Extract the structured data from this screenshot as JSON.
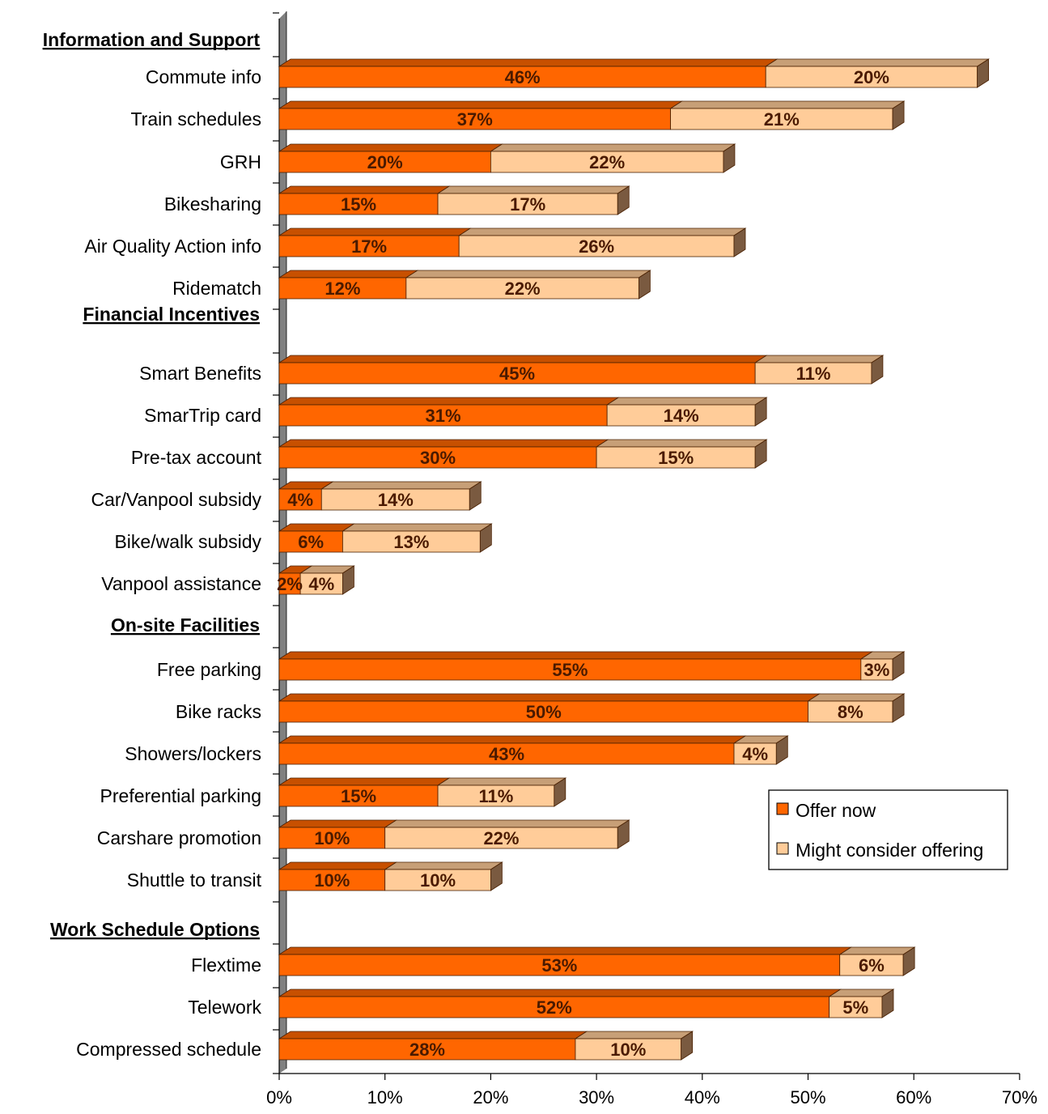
{
  "chart_data": {
    "type": "bar",
    "orientation": "horizontal",
    "stacked": true,
    "x_ticks": [
      "0%",
      "10%",
      "20%",
      "30%",
      "40%",
      "50%",
      "60%",
      "70%"
    ],
    "xlim": [
      0,
      70
    ],
    "legend_position": "right",
    "series": [
      {
        "name": "Offer now",
        "color": "#ff6600"
      },
      {
        "name": "Might consider offering",
        "color": "#ffcc99"
      }
    ],
    "groups": [
      {
        "title": "Information and Support",
        "items": [
          {
            "label": "Commute info",
            "values": [
              46,
              20
            ],
            "labels": [
              "46%",
              "20%"
            ]
          },
          {
            "label": "Train schedules",
            "values": [
              37,
              21
            ],
            "labels": [
              "37%",
              "21%"
            ]
          },
          {
            "label": "GRH",
            "values": [
              20,
              22
            ],
            "labels": [
              "20%",
              "22%"
            ]
          },
          {
            "label": "Bikesharing",
            "values": [
              15,
              17
            ],
            "labels": [
              "15%",
              "17%"
            ]
          },
          {
            "label": "Air Quality Action info",
            "values": [
              17,
              26
            ],
            "labels": [
              "17%",
              "26%"
            ]
          },
          {
            "label": "Ridematch",
            "values": [
              12,
              22
            ],
            "labels": [
              "12%",
              "22%"
            ]
          }
        ]
      },
      {
        "title": "Financial Incentives",
        "items": [
          {
            "label": "Smart Benefits",
            "values": [
              45,
              11
            ],
            "labels": [
              "45%",
              "11%"
            ]
          },
          {
            "label": "SmarTrip card",
            "values": [
              31,
              14
            ],
            "labels": [
              "31%",
              "14%"
            ]
          },
          {
            "label": "Pre-tax account",
            "values": [
              30,
              15
            ],
            "labels": [
              "30%",
              "15%"
            ]
          },
          {
            "label": "Car/Vanpool subsidy",
            "values": [
              4,
              14
            ],
            "labels": [
              "4%",
              "14%"
            ]
          },
          {
            "label": "Bike/walk subsidy",
            "values": [
              6,
              13
            ],
            "labels": [
              "6%",
              "13%"
            ]
          },
          {
            "label": "Vanpool assistance",
            "values": [
              2,
              4
            ],
            "labels": [
              "2%",
              "4%"
            ]
          }
        ]
      },
      {
        "title": "On-site Facilities",
        "items": [
          {
            "label": "Free parking",
            "values": [
              55,
              3
            ],
            "labels": [
              "55%",
              "3%"
            ]
          },
          {
            "label": "Bike racks",
            "values": [
              50,
              8
            ],
            "labels": [
              "50%",
              "8%"
            ]
          },
          {
            "label": "Showers/lockers",
            "values": [
              43,
              4
            ],
            "labels": [
              "43%",
              "4%"
            ]
          },
          {
            "label": "Preferential parking",
            "values": [
              15,
              11
            ],
            "labels": [
              "15%",
              "11%"
            ]
          },
          {
            "label": "Carshare promotion",
            "values": [
              10,
              22
            ],
            "labels": [
              "10%",
              "22%"
            ]
          },
          {
            "label": "Shuttle to transit",
            "values": [
              10,
              10
            ],
            "labels": [
              "10%",
              "10%"
            ]
          }
        ]
      },
      {
        "title": "Work Schedule Options",
        "items": [
          {
            "label": "Flextime",
            "values": [
              53,
              6
            ],
            "labels": [
              "53%",
              "6%"
            ]
          },
          {
            "label": "Telework",
            "values": [
              52,
              5
            ],
            "labels": [
              "52%",
              "5%"
            ]
          },
          {
            "label": "Compressed schedule",
            "values": [
              28,
              10
            ],
            "labels": [
              "28%",
              "10%"
            ]
          }
        ]
      }
    ]
  }
}
